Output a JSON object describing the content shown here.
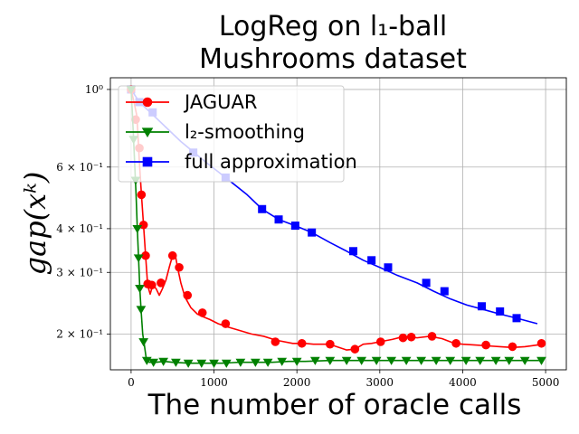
{
  "chart_data": {
    "type": "line",
    "title_lines": [
      "LogReg on l₁-ball",
      "Mushrooms dataset"
    ],
    "xlabel": "The number of oracle calls",
    "ylabel": "gap(xᵏ)",
    "xlim": [
      -250,
      5250
    ],
    "ylim": [
      0.158,
      1.08
    ],
    "yscale": "log",
    "grid": true,
    "legend_position": "top-left",
    "x_ticks": [
      {
        "value": 0,
        "label": "0"
      },
      {
        "value": 1000,
        "label": "1000"
      },
      {
        "value": 2000,
        "label": "2000"
      },
      {
        "value": 3000,
        "label": "3000"
      },
      {
        "value": 4000,
        "label": "4000"
      },
      {
        "value": 5000,
        "label": "5000"
      }
    ],
    "y_ticks": [
      {
        "value": 1.0,
        "label": "10⁰"
      },
      {
        "value": 0.6,
        "label": "6 × 10⁻¹"
      },
      {
        "value": 0.4,
        "label": "4 × 10⁻¹"
      },
      {
        "value": 0.3,
        "label": "3 × 10⁻¹"
      },
      {
        "value": 0.2,
        "label": "2 × 10⁻¹"
      }
    ],
    "series": [
      {
        "name": "JAGUAR",
        "color": "#ff0000",
        "marker": "circle",
        "x": [
          0,
          35,
          70,
          100,
          125,
          150,
          175,
          200,
          230,
          260,
          300,
          340,
          380,
          420,
          460,
          500,
          530,
          560,
          600,
          650,
          720,
          800,
          870,
          950,
          1050,
          1150,
          1300,
          1450,
          1600,
          1750,
          1950,
          2100,
          2200,
          2350,
          2450,
          2600,
          2700,
          2800,
          2900,
          3000,
          3150,
          3300,
          3450,
          3600,
          3750,
          3900,
          4000,
          4150,
          4300,
          4450,
          4600,
          4750,
          4900,
          4950
        ],
        "y": [
          1.0,
          0.92,
          0.84,
          0.62,
          0.5,
          0.41,
          0.335,
          0.275,
          0.26,
          0.275,
          0.27,
          0.258,
          0.27,
          0.285,
          0.31,
          0.335,
          0.34,
          0.31,
          0.28,
          0.255,
          0.238,
          0.228,
          0.224,
          0.22,
          0.214,
          0.21,
          0.205,
          0.2,
          0.197,
          0.192,
          0.188,
          0.188,
          0.187,
          0.187,
          0.185,
          0.18,
          0.181,
          0.187,
          0.188,
          0.19,
          0.193,
          0.197,
          0.195,
          0.197,
          0.194,
          0.188,
          0.187,
          0.186,
          0.185,
          0.184,
          0.183,
          0.184,
          0.186,
          0.188
        ],
        "markers_x": [
          0,
          55,
          100,
          125,
          150,
          175,
          200,
          250,
          360,
          500,
          580,
          680,
          860,
          1140,
          1740,
          2060,
          2400,
          2700,
          3010,
          3280,
          3380,
          3630,
          3920,
          4280,
          4600,
          4950
        ],
        "markers_y": [
          1.0,
          0.82,
          0.68,
          0.5,
          0.41,
          0.335,
          0.278,
          0.276,
          0.28,
          0.335,
          0.31,
          0.258,
          0.23,
          0.214,
          0.19,
          0.188,
          0.187,
          0.181,
          0.19,
          0.195,
          0.196,
          0.197,
          0.188,
          0.186,
          0.184,
          0.188
        ]
      },
      {
        "name": "l₂-smoothing",
        "color": "#008000",
        "marker": "triangle-down",
        "x": [
          0,
          15,
          30,
          45,
          60,
          75,
          90,
          105,
          120,
          140,
          160,
          180,
          220,
          300,
          400,
          500,
          700,
          900,
          1100,
          1300,
          1500,
          1700,
          1900,
          2100,
          2400,
          2700,
          3000,
          3300,
          3600,
          3900,
          4200,
          4500,
          4800,
          4950
        ],
        "y": [
          1.0,
          0.86,
          0.72,
          0.6,
          0.5,
          0.4,
          0.33,
          0.27,
          0.235,
          0.2,
          0.186,
          0.172,
          0.166,
          0.166,
          0.167,
          0.166,
          0.165,
          0.165,
          0.165,
          0.166,
          0.166,
          0.166,
          0.167,
          0.167,
          0.168,
          0.168,
          0.168,
          0.168,
          0.168,
          0.168,
          0.168,
          0.168,
          0.168,
          0.168
        ],
        "markers_x": [
          0,
          30,
          55,
          75,
          90,
          105,
          120,
          150,
          190,
          270,
          390,
          540,
          690,
          850,
          1000,
          1150,
          1320,
          1500,
          1650,
          1820,
          2000,
          2220,
          2400,
          2600,
          2780,
          2960,
          3140,
          3320,
          3500,
          3680,
          3850,
          4040,
          4210,
          4400,
          4560,
          4750,
          4950
        ],
        "markers_y": [
          1.0,
          0.72,
          0.55,
          0.4,
          0.33,
          0.27,
          0.235,
          0.19,
          0.168,
          0.166,
          0.167,
          0.166,
          0.165,
          0.165,
          0.165,
          0.165,
          0.166,
          0.166,
          0.166,
          0.167,
          0.167,
          0.168,
          0.168,
          0.168,
          0.168,
          0.168,
          0.168,
          0.168,
          0.168,
          0.168,
          0.168,
          0.168,
          0.168,
          0.168,
          0.168,
          0.168,
          0.168
        ]
      },
      {
        "name": "full approximation",
        "color": "#0000ff",
        "marker": "square",
        "x": [
          0,
          100,
          300,
          600,
          900,
          1140,
          1400,
          1580,
          1780,
          1980,
          2180,
          2400,
          2600,
          2800,
          3000,
          3200,
          3450,
          3650,
          3850,
          4050,
          4250,
          4450,
          4650,
          4900
        ],
        "y": [
          1.0,
          0.92,
          0.83,
          0.71,
          0.62,
          0.56,
          0.5,
          0.455,
          0.425,
          0.408,
          0.39,
          0.365,
          0.345,
          0.325,
          0.31,
          0.295,
          0.28,
          0.265,
          0.252,
          0.242,
          0.235,
          0.228,
          0.222,
          0.214
        ],
        "markers_x": [
          0,
          100,
          260,
          750,
          1140,
          1580,
          1780,
          1980,
          2180,
          2680,
          2900,
          3100,
          3560,
          3780,
          4230,
          4450,
          4650
        ],
        "markers_y": [
          1.0,
          0.92,
          0.86,
          0.66,
          0.56,
          0.455,
          0.425,
          0.408,
          0.39,
          0.345,
          0.325,
          0.31,
          0.28,
          0.265,
          0.24,
          0.232,
          0.222
        ]
      }
    ]
  }
}
